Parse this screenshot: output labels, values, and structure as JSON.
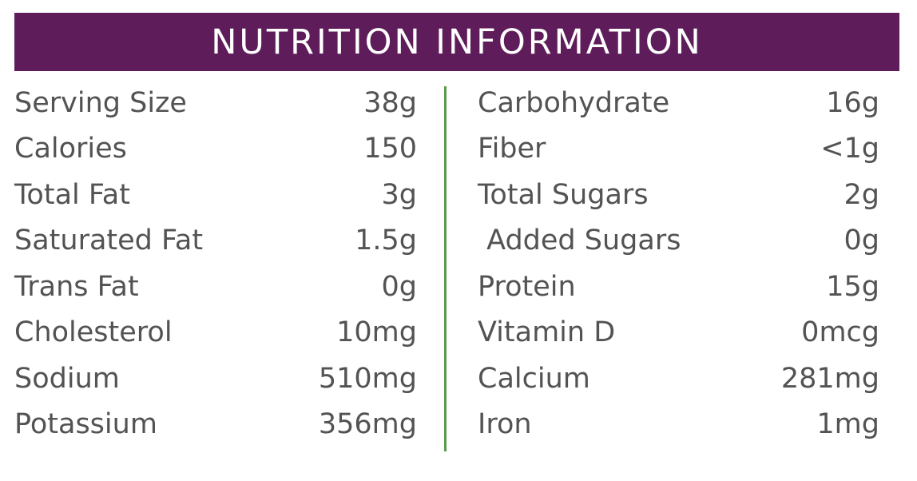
{
  "title": "NUTRITION INFORMATION",
  "colors": {
    "header_bg": "#5e1d5a",
    "divider": "#5a9a4a",
    "text": "#535353"
  },
  "left": [
    {
      "label": "Serving Size",
      "value": "38g"
    },
    {
      "label": "Calories",
      "value": "150"
    },
    {
      "label": "Total Fat",
      "value": "3g"
    },
    {
      "label": "Saturated Fat",
      "value": "1.5g"
    },
    {
      "label": "Trans Fat",
      "value": "0g"
    },
    {
      "label": "Cholesterol",
      "value": "10mg"
    },
    {
      "label": "Sodium",
      "value": "510mg"
    },
    {
      "label": "Potassium",
      "value": "356mg"
    }
  ],
  "right": [
    {
      "label": "Carbohydrate",
      "value": "16g"
    },
    {
      "label": "Fiber",
      "value": "<1g"
    },
    {
      "label": "Total Sugars",
      "value": "2g"
    },
    {
      "label": " Added Sugars",
      "value": "0g"
    },
    {
      "label": "Protein",
      "value": "15g"
    },
    {
      "label": "Vitamin D",
      "value": "0mcg"
    },
    {
      "label": "Calcium",
      "value": "281mg"
    },
    {
      "label": "Iron",
      "value": "1mg"
    }
  ]
}
